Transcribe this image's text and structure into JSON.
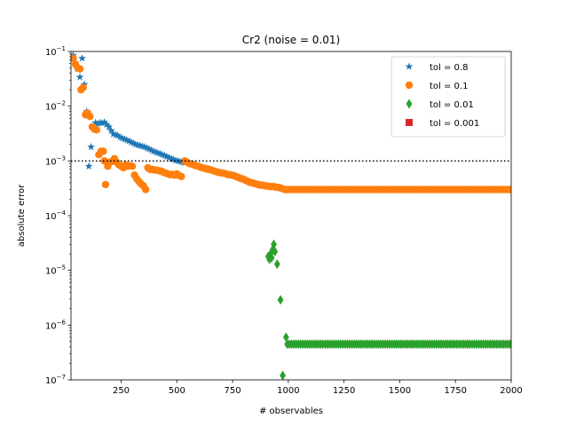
{
  "chart_data": {
    "type": "scatter",
    "title": "Cr2 (noise = 0.01)",
    "xlabel": "# observables",
    "ylabel": "absolute error",
    "xlim": [
      25,
      2000
    ],
    "ylim": [
      1e-07,
      0.1
    ],
    "yscale": "log",
    "x_ticks": [
      250,
      500,
      750,
      1000,
      1250,
      1500,
      1750,
      2000
    ],
    "x_tick_labels": [
      "250",
      "500",
      "750",
      "1000",
      "1250",
      "1500",
      "1750",
      "2000"
    ],
    "y_ticks": [
      1e-07,
      1e-06,
      1e-05,
      0.0001,
      0.001,
      0.01,
      0.1
    ],
    "y_tick_labels": [
      {
        "base": "10",
        "exp": "−7"
      },
      {
        "base": "10",
        "exp": "−6"
      },
      {
        "base": "10",
        "exp": "−5"
      },
      {
        "base": "10",
        "exp": "−4"
      },
      {
        "base": "10",
        "exp": "−3"
      },
      {
        "base": "10",
        "exp": "−2"
      },
      {
        "base": "10",
        "exp": "−1"
      }
    ],
    "reference_line": {
      "y": 0.001,
      "style": "dotted",
      "color": "#000000"
    },
    "legend_position": "top-right",
    "series": [
      {
        "name": "tol = 0.8",
        "marker": "star",
        "color": "#1f77b4",
        "points": [
          [
            35,
            0.085
          ],
          [
            45,
            0.062
          ],
          [
            55,
            0.048
          ],
          [
            65,
            0.034
          ],
          [
            75,
            0.075
          ],
          [
            85,
            0.025
          ],
          [
            95,
            0.008
          ],
          [
            105,
            0.0008
          ],
          [
            115,
            0.0018
          ],
          [
            135,
            0.005
          ],
          [
            145,
            0.0048
          ],
          [
            155,
            0.005
          ],
          [
            165,
            0.0049
          ],
          [
            175,
            0.0051
          ],
          [
            185,
            0.0046
          ],
          [
            195,
            0.0042
          ],
          [
            205,
            0.0036
          ],
          [
            215,
            0.0031
          ],
          [
            225,
            0.003
          ],
          [
            235,
            0.0029
          ],
          [
            245,
            0.0027
          ],
          [
            255,
            0.0026
          ],
          [
            265,
            0.0025
          ],
          [
            275,
            0.0024
          ],
          [
            285,
            0.0023
          ],
          [
            295,
            0.0022
          ],
          [
            305,
            0.0021
          ],
          [
            315,
            0.002
          ],
          [
            325,
            0.00195
          ],
          [
            335,
            0.0019
          ],
          [
            345,
            0.00185
          ],
          [
            355,
            0.0018
          ],
          [
            365,
            0.00172
          ],
          [
            375,
            0.00165
          ],
          [
            385,
            0.00158
          ],
          [
            395,
            0.0015
          ],
          [
            405,
            0.00145
          ],
          [
            415,
            0.0014
          ],
          [
            425,
            0.00135
          ],
          [
            435,
            0.0013
          ],
          [
            445,
            0.00125
          ],
          [
            455,
            0.0012
          ],
          [
            465,
            0.00115
          ],
          [
            475,
            0.0011
          ],
          [
            485,
            0.00106
          ],
          [
            495,
            0.00102
          ],
          [
            505,
            0.001
          ],
          [
            515,
            0.00097
          ],
          [
            525,
            0.00095
          ],
          [
            535,
            0.00093
          ]
        ]
      },
      {
        "name": "tol = 0.1",
        "marker": "circle",
        "color": "#ff7f0e",
        "points": [
          [
            35,
            0.075
          ],
          [
            45,
            0.058
          ],
          [
            55,
            0.05
          ],
          [
            65,
            0.048
          ],
          [
            70,
            0.02
          ],
          [
            80,
            0.022
          ],
          [
            90,
            0.007
          ],
          [
            100,
            0.0075
          ],
          [
            110,
            0.0065
          ],
          [
            120,
            0.0042
          ],
          [
            130,
            0.0038
          ],
          [
            140,
            0.0037
          ],
          [
            150,
            0.0013
          ],
          [
            160,
            0.0015
          ],
          [
            170,
            0.0015
          ],
          [
            175,
            0.001
          ],
          [
            180,
            0.00037
          ],
          [
            190,
            0.0008
          ],
          [
            200,
            0.00095
          ],
          [
            210,
            0.00098
          ],
          [
            220,
            0.0011
          ],
          [
            230,
            0.00095
          ],
          [
            240,
            0.00085
          ],
          [
            250,
            0.0008
          ],
          [
            260,
            0.00075
          ],
          [
            270,
            0.00085
          ],
          [
            280,
            0.0008
          ],
          [
            290,
            0.00082
          ],
          [
            300,
            0.0008
          ],
          [
            310,
            0.00055
          ],
          [
            320,
            0.00047
          ],
          [
            330,
            0.00042
          ],
          [
            340,
            0.00038
          ],
          [
            350,
            0.00035
          ],
          [
            360,
            0.0003
          ],
          [
            370,
            0.00075
          ],
          [
            380,
            0.0007
          ],
          [
            390,
            0.0007
          ],
          [
            400,
            0.00068
          ],
          [
            410,
            0.00068
          ],
          [
            420,
            0.00066
          ],
          [
            430,
            0.00065
          ],
          [
            440,
            0.00062
          ],
          [
            450,
            0.0006
          ],
          [
            460,
            0.00058
          ],
          [
            470,
            0.00056
          ],
          [
            480,
            0.00057
          ],
          [
            490,
            0.00055
          ],
          [
            500,
            0.00058
          ],
          [
            510,
            0.00054
          ],
          [
            520,
            0.00052
          ],
          [
            535,
            0.001
          ],
          [
            545,
            0.00095
          ],
          [
            555,
            0.0009
          ],
          [
            565,
            0.00088
          ],
          [
            575,
            0.00085
          ],
          [
            585,
            0.00082
          ],
          [
            595,
            0.0008
          ],
          [
            605,
            0.00077
          ],
          [
            615,
            0.00075
          ],
          [
            625,
            0.00073
          ],
          [
            635,
            0.00071
          ],
          [
            645,
            0.0007
          ],
          [
            655,
            0.00068
          ],
          [
            665,
            0.00066
          ],
          [
            675,
            0.00064
          ],
          [
            685,
            0.00062
          ],
          [
            695,
            0.00061
          ],
          [
            705,
            0.0006
          ],
          [
            715,
            0.00059
          ],
          [
            725,
            0.00057
          ],
          [
            735,
            0.00056
          ],
          [
            745,
            0.00055
          ],
          [
            755,
            0.00054
          ],
          [
            765,
            0.00052
          ],
          [
            775,
            0.0005
          ],
          [
            785,
            0.00048
          ],
          [
            795,
            0.00047
          ],
          [
            805,
            0.00045
          ],
          [
            815,
            0.00043
          ],
          [
            825,
            0.00041
          ],
          [
            835,
            0.0004
          ],
          [
            845,
            0.00039
          ],
          [
            855,
            0.00038
          ],
          [
            865,
            0.00037
          ],
          [
            875,
            0.00036
          ],
          [
            885,
            0.00036
          ],
          [
            895,
            0.00035
          ],
          [
            905,
            0.00035
          ],
          [
            915,
            0.00034
          ],
          [
            925,
            0.00034
          ],
          [
            935,
            0.00034
          ],
          [
            945,
            0.00033
          ],
          [
            955,
            0.00033
          ],
          [
            965,
            0.00032
          ],
          [
            975,
            0.00031
          ],
          [
            985,
            0.0003
          ]
        ],
        "tail": {
          "x_start": 995,
          "x_end": 2000,
          "step": 10,
          "y": 0.0003
        }
      },
      {
        "name": "tol = 0.01",
        "marker": "diamond",
        "color": "#2ca02c",
        "points": [
          [
            910,
            1.8e-05
          ],
          [
            915,
            1.6e-05
          ],
          [
            920,
            2e-05
          ],
          [
            925,
            1.7e-05
          ],
          [
            930,
            2.4e-05
          ],
          [
            935,
            3e-05
          ],
          [
            940,
            2.2e-05
          ],
          [
            950,
            1.3e-05
          ],
          [
            965,
            2.9e-06
          ],
          [
            975,
            1.2e-07
          ],
          [
            990,
            6e-07
          ],
          [
            995,
            4.5e-07
          ]
        ],
        "tail": {
          "x_start": 1005,
          "x_end": 2000,
          "step": 10,
          "y": 4.5e-07
        }
      },
      {
        "name": "tol = 0.001",
        "marker": "square",
        "color": "#d62728",
        "points": []
      }
    ]
  }
}
